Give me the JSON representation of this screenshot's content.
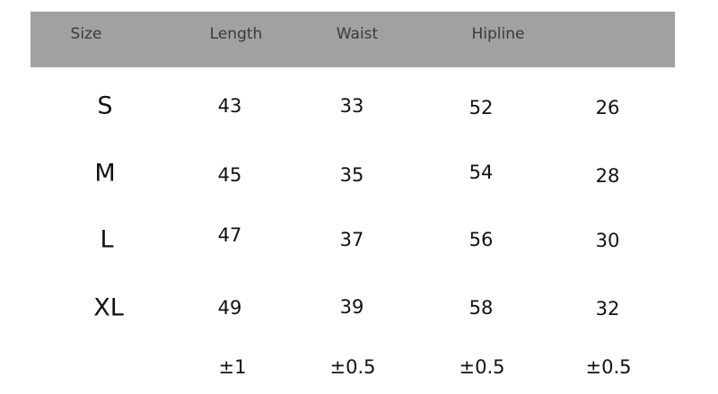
{
  "header": {
    "columns": [
      "Size",
      "Length",
      "Waist",
      "Hipline",
      ""
    ],
    "background": "#a1a1a1"
  },
  "rows": [
    {
      "size": "S",
      "values": [
        "43",
        "33",
        "52",
        "26"
      ]
    },
    {
      "size": "M",
      "values": [
        "45",
        "35",
        "54",
        "28"
      ]
    },
    {
      "size": "L",
      "values": [
        "47",
        "37",
        "56",
        "30"
      ]
    },
    {
      "size": "XL",
      "values": [
        "49",
        "39",
        "58",
        "32"
      ]
    }
  ],
  "tolerance": [
    "±1",
    "±0.5",
    "±0.5",
    "±0.5"
  ]
}
